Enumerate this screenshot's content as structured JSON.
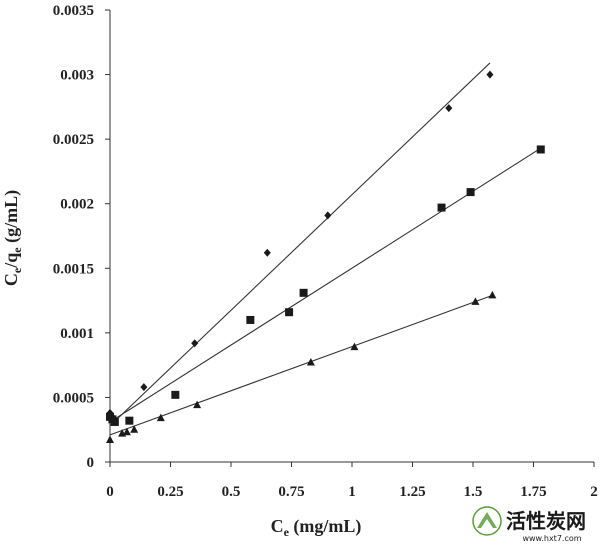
{
  "chart_data": {
    "type": "scatter",
    "xlabel": {
      "main": "C",
      "sub": "e",
      "unit": " (mg/mL)"
    },
    "ylabel": {
      "main1": "C",
      "sub1": "e",
      "mid": "/q",
      "sub2": "e",
      "unit": " (g/mL)"
    },
    "xlim": [
      0,
      2
    ],
    "ylim": [
      0,
      0.0035
    ],
    "xticks": [
      0,
      0.25,
      0.5,
      0.75,
      1,
      1.25,
      1.5,
      1.75,
      2
    ],
    "xtick_labels": [
      "0",
      "0.25",
      "0.5",
      "0.75",
      "1",
      "1.25",
      "1.5",
      "1.75",
      "2"
    ],
    "yticks": [
      0,
      0.0005,
      0.001,
      0.0015,
      0.002,
      0.0025,
      0.003,
      0.0035
    ],
    "ytick_labels": [
      "0",
      "0.0005",
      "0.001",
      "0.0015",
      "0.002",
      "0.0025",
      "0.003",
      "0.0035"
    ],
    "series": [
      {
        "marker": "diamond",
        "points": [
          [
            0.0,
            0.00038
          ],
          [
            0.005,
            0.00036
          ],
          [
            0.01,
            0.00034
          ],
          [
            0.02,
            0.00032
          ],
          [
            0.14,
            0.00058
          ],
          [
            0.35,
            0.00092
          ],
          [
            0.65,
            0.00162
          ],
          [
            0.9,
            0.00191
          ],
          [
            1.4,
            0.00274
          ],
          [
            1.57,
            0.003
          ]
        ],
        "fit": {
          "x": [
            0,
            1.57
          ],
          "y": [
            0.00028,
            0.00309
          ]
        }
      },
      {
        "marker": "square",
        "points": [
          [
            0.0,
            0.00035
          ],
          [
            0.01,
            0.00033
          ],
          [
            0.02,
            0.00031
          ],
          [
            0.08,
            0.00032
          ],
          [
            0.27,
            0.00052
          ],
          [
            0.58,
            0.0011
          ],
          [
            0.74,
            0.00116
          ],
          [
            0.8,
            0.00131
          ],
          [
            1.37,
            0.00197
          ],
          [
            1.49,
            0.00209
          ],
          [
            1.78,
            0.00242
          ]
        ],
        "fit": {
          "x": [
            0,
            1.78
          ],
          "y": [
            0.00031,
            0.00243
          ]
        }
      },
      {
        "marker": "triangle",
        "points": [
          [
            0.0,
            0.00017
          ],
          [
            0.05,
            0.00022
          ],
          [
            0.07,
            0.00023
          ],
          [
            0.1,
            0.00025
          ],
          [
            0.21,
            0.00034
          ],
          [
            0.36,
            0.00044
          ],
          [
            0.83,
            0.00077
          ],
          [
            1.01,
            0.00089
          ],
          [
            1.51,
            0.00124
          ],
          [
            1.58,
            0.00129
          ]
        ],
        "fit": {
          "x": [
            0,
            1.58
          ],
          "y": [
            0.00021,
            0.00129
          ]
        }
      }
    ]
  },
  "watermark": {
    "text": "活性炭网",
    "url": "www.hxt7.com"
  }
}
